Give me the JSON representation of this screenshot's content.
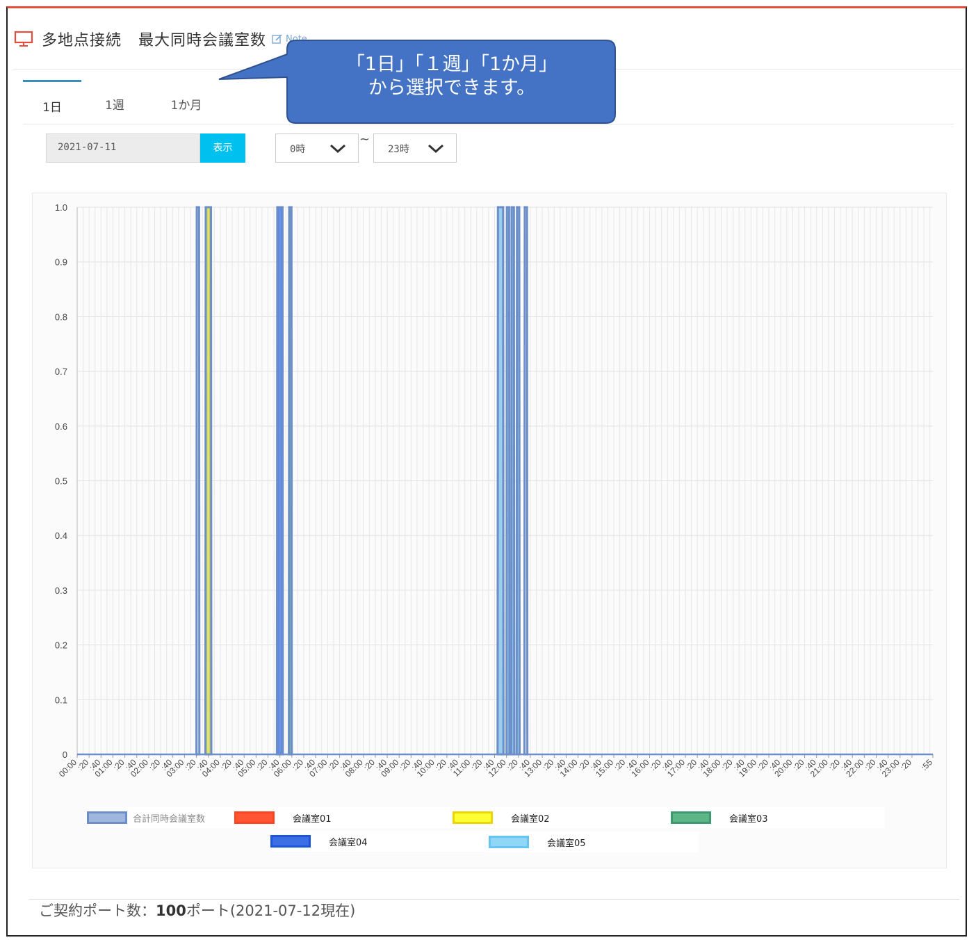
{
  "header": {
    "title_part1": "多地点接続",
    "title_part2": "最大同時会議室数",
    "note_label": "Note"
  },
  "tabs": [
    {
      "label": "1日",
      "active": true
    },
    {
      "label": "1週",
      "active": false
    },
    {
      "label": "1か月",
      "active": false
    }
  ],
  "controls": {
    "date_value": "2021-07-11",
    "show_button": "表示",
    "from_hour": "0時",
    "range_separator": "~",
    "to_hour": "23時"
  },
  "callout": {
    "line1": "「1日」「１週」「1か月」",
    "line2": "から選択できます。",
    "color": "#4472c4"
  },
  "chart_data": {
    "type": "area",
    "ylim": [
      0,
      1.0
    ],
    "yticks": [
      "1.0",
      "0.9",
      "0.8",
      "0.7",
      "0.6",
      "0.5",
      "0.4",
      "0.3",
      "0.2",
      "0.1",
      "0"
    ],
    "xticks": [
      "00:00",
      ":20",
      ":40",
      "01:00",
      ":20",
      ":40",
      "02:00",
      ":20",
      ":40",
      "03:00",
      ":20",
      ":40",
      "04:00",
      ":20",
      ":40",
      "05:00",
      ":20",
      ":40",
      "06:00",
      ":20",
      ":40",
      "07:00",
      ":20",
      ":40",
      "08:00",
      ":20",
      ":40",
      "09:00",
      ":20",
      ":40",
      "10:00",
      ":20",
      ":40",
      "11:00",
      ":20",
      ":40",
      "12:00",
      ":20",
      ":40",
      "13:00",
      ":20",
      ":40",
      "14:00",
      ":20",
      ":40",
      "15:00",
      ":20",
      ":40",
      "16:00",
      ":20",
      ":40",
      "17:00",
      ":20",
      ":40",
      "18:00",
      ":20",
      ":40",
      "19:00",
      ":20",
      ":40",
      "20:00",
      ":20",
      ":40",
      "21:00",
      ":20",
      ":40",
      "22:00",
      ":20",
      ":40",
      "23:00",
      ":20",
      ":55"
    ],
    "x_minutes_range": [
      0,
      1435
    ],
    "series": [
      {
        "name": "合計同時会議室数",
        "color": "#6d8fc9",
        "fill": "#9fb6dd",
        "spikes": [
          [
            200,
            205
          ],
          [
            215,
            225
          ],
          [
            335,
            345
          ],
          [
            355,
            360
          ],
          [
            705,
            715
          ],
          [
            720,
            725
          ],
          [
            728,
            733
          ],
          [
            737,
            742
          ],
          [
            750,
            755
          ]
        ]
      },
      {
        "name": "会議室01",
        "color": "#ff4422",
        "fill": "#ff5533",
        "spikes": []
      },
      {
        "name": "会議室02",
        "color": "#e8d800",
        "fill": "#ffff33",
        "spikes": [
          [
            217,
            223
          ]
        ]
      },
      {
        "name": "会議室03",
        "color": "#3d9970",
        "fill": "#5cb585",
        "spikes": [
          [
            356,
            360
          ]
        ]
      },
      {
        "name": "会議室04",
        "color": "#1a56db",
        "fill": "#3b6fe6",
        "spikes": [
          [
            336,
            344
          ]
        ]
      },
      {
        "name": "会議室05",
        "color": "#66c5ef",
        "fill": "#8fd6f7",
        "spikes": [
          [
            706,
            714
          ],
          [
            721,
            725
          ],
          [
            729,
            733
          ],
          [
            738,
            742
          ]
        ]
      }
    ]
  },
  "footer": {
    "prefix": "ご契約ポート数：",
    "count": "100",
    "suffix": "ポート(2021-07-12現在)"
  }
}
